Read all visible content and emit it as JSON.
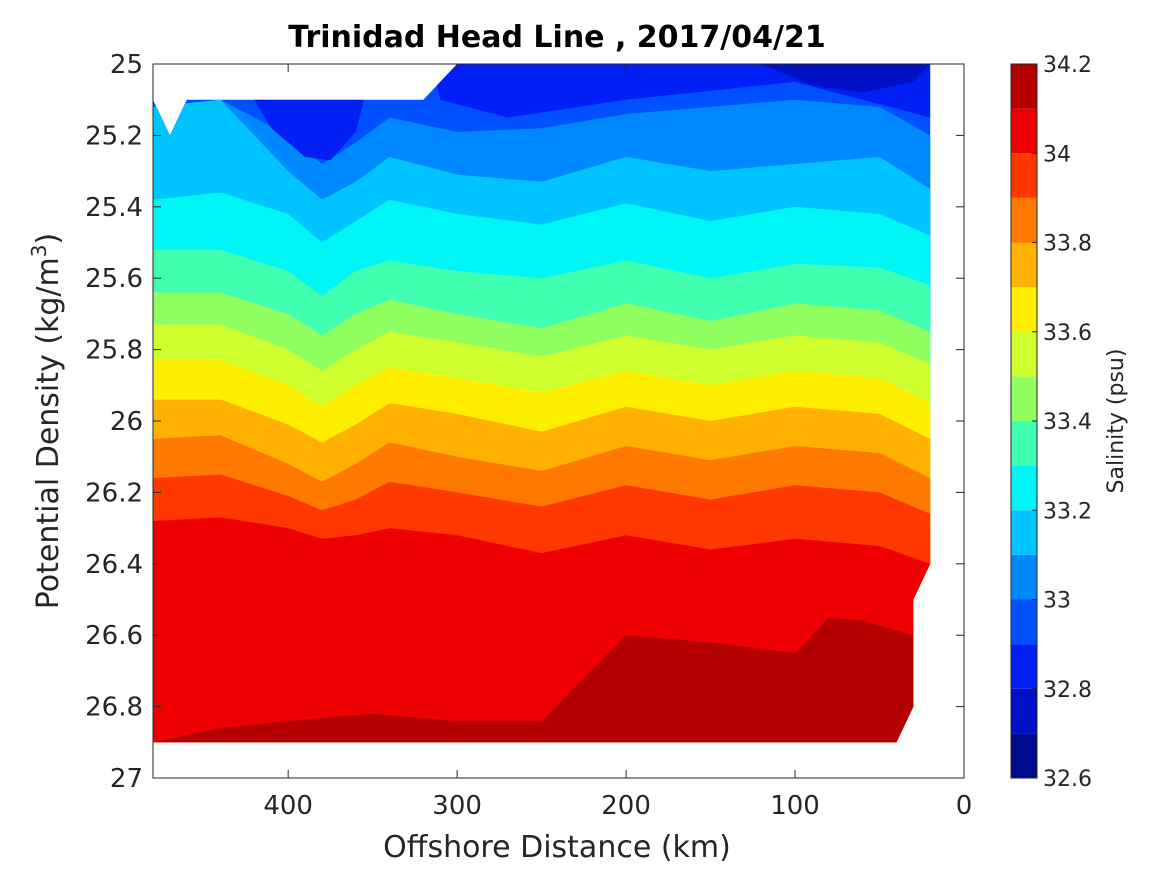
{
  "chart_data": {
    "type": "contour",
    "title": "Trinidad Head Line , 2017/04/21",
    "xlabel": "Offshore Distance (km)",
    "ylabel_main": "Potential Density (kg/m",
    "ylabel_sup": "3",
    "ylabel_end": ")",
    "colorbar_label": "Salinity (psu)",
    "x_axis": {
      "reversed": true,
      "lim": [
        0,
        480
      ],
      "ticks": [
        400,
        300,
        200,
        100,
        0
      ],
      "tick_labels": [
        "400",
        "300",
        "200",
        "100",
        "0"
      ]
    },
    "y_axis": {
      "reversed": true,
      "lim": [
        25,
        27
      ],
      "ticks": [
        25,
        25.2,
        25.4,
        25.6,
        25.8,
        26,
        26.2,
        26.4,
        26.6,
        26.8,
        27
      ],
      "tick_labels": [
        "25",
        "25.2",
        "25.4",
        "25.6",
        "25.8",
        "26",
        "26.2",
        "26.4",
        "26.6",
        "26.8",
        "27"
      ]
    },
    "colorbar": {
      "lim": [
        32.6,
        34.2
      ],
      "ticks": [
        32.6,
        32.8,
        33,
        33.2,
        33.4,
        33.6,
        33.8,
        34,
        34.2
      ],
      "tick_labels": [
        "32.6",
        "32.8",
        "33",
        "33.2",
        "33.4",
        "33.6",
        "33.8",
        "34",
        "34.2"
      ],
      "levels": [
        32.6,
        32.7,
        32.8,
        32.9,
        33.0,
        33.1,
        33.2,
        33.3,
        33.4,
        33.5,
        33.6,
        33.7,
        33.8,
        33.9,
        34.0,
        34.1,
        34.2
      ],
      "colors": [
        "#000a8f",
        "#0010c4",
        "#001ff5",
        "#0050ff",
        "#0088ff",
        "#00c4ff",
        "#00f5f5",
        "#40ffb0",
        "#90ff60",
        "#d0ff30",
        "#ffee00",
        "#ffb000",
        "#ff7800",
        "#ff3800",
        "#ee0000",
        "#b50000"
      ]
    },
    "data_extent": {
      "x": [
        480,
        470,
        460,
        440,
        420,
        400,
        380,
        360,
        340,
        320,
        300,
        280,
        260,
        240,
        220,
        200,
        180,
        160,
        140,
        120,
        100,
        80,
        60,
        40,
        20
      ],
      "top_y": [
        25.1,
        25.2,
        25.1,
        25.1,
        25.1,
        25.1,
        25.1,
        25.1,
        25.1,
        25.1,
        25.0,
        25.0,
        25.0,
        25.0,
        25.0,
        25.0,
        25.0,
        25.0,
        25.0,
        25.0,
        25.0,
        25.0,
        25.0,
        25.0,
        25.0
      ],
      "bottom_y": 26.9,
      "notes": "white wedges at top near 470 km and 290 km; missing bottom-right region below ~26.4 east of 30 km"
    },
    "contours": [
      {
        "level": 32.8,
        "note": "patches: near-surface 25.1–25.25 around 400–360 km and at top-right 100–50 km"
      },
      {
        "level": 32.9,
        "y_at_x": {
          "x": [
            480,
            440,
            400,
            380,
            360,
            340,
            300,
            250,
            200,
            150,
            100,
            50,
            20
          ],
          "y": [
            25.12,
            25.1,
            25.2,
            25.28,
            25.22,
            25.15,
            25.19,
            25.18,
            25.14,
            25.12,
            25.1,
            25.12,
            25.2
          ]
        }
      },
      {
        "level": 33.0,
        "y_at_x": {
          "x": [
            480,
            440,
            400,
            380,
            360,
            340,
            300,
            250,
            200,
            150,
            100,
            50,
            20
          ],
          "y": [
            25.12,
            25.1,
            25.3,
            25.38,
            25.33,
            25.26,
            25.31,
            25.33,
            25.26,
            25.3,
            25.28,
            25.26,
            25.35
          ]
        }
      },
      {
        "level": 33.1,
        "y_at_x": {
          "x": [
            480,
            440,
            400,
            380,
            360,
            340,
            300,
            250,
            200,
            150,
            100,
            50,
            20
          ],
          "y": [
            25.38,
            25.36,
            25.42,
            25.5,
            25.44,
            25.38,
            25.42,
            25.45,
            25.39,
            25.44,
            25.4,
            25.42,
            25.48
          ]
        }
      },
      {
        "level": 33.2,
        "y_at_x": {
          "x": [
            480,
            440,
            400,
            380,
            360,
            340,
            300,
            250,
            200,
            150,
            100,
            50,
            20
          ],
          "y": [
            25.52,
            25.52,
            25.58,
            25.65,
            25.58,
            25.55,
            25.58,
            25.6,
            25.55,
            25.6,
            25.56,
            25.57,
            25.62
          ]
        }
      },
      {
        "level": 33.3,
        "y_at_x": {
          "x": [
            480,
            440,
            400,
            380,
            360,
            340,
            300,
            250,
            200,
            150,
            100,
            50,
            20
          ],
          "y": [
            25.64,
            25.64,
            25.7,
            25.76,
            25.7,
            25.66,
            25.7,
            25.74,
            25.67,
            25.72,
            25.67,
            25.69,
            25.75
          ]
        }
      },
      {
        "level": 33.4,
        "y_at_x": {
          "x": [
            480,
            440,
            400,
            380,
            360,
            340,
            300,
            250,
            200,
            150,
            100,
            50,
            20
          ],
          "y": [
            25.73,
            25.73,
            25.8,
            25.86,
            25.8,
            25.75,
            25.78,
            25.82,
            25.76,
            25.8,
            25.76,
            25.78,
            25.84
          ]
        }
      },
      {
        "level": 33.5,
        "y_at_x": {
          "x": [
            480,
            440,
            400,
            380,
            360,
            340,
            300,
            250,
            200,
            150,
            100,
            50,
            20
          ],
          "y": [
            25.83,
            25.83,
            25.9,
            25.96,
            25.9,
            25.85,
            25.88,
            25.92,
            25.86,
            25.9,
            25.86,
            25.88,
            25.95
          ]
        }
      },
      {
        "level": 33.6,
        "y_at_x": {
          "x": [
            480,
            440,
            400,
            380,
            360,
            340,
            300,
            250,
            200,
            150,
            100,
            50,
            20
          ],
          "y": [
            25.94,
            25.94,
            26.01,
            26.06,
            26.01,
            25.95,
            25.98,
            26.03,
            25.96,
            26.0,
            25.96,
            25.98,
            26.05
          ]
        }
      },
      {
        "level": 33.7,
        "y_at_x": {
          "x": [
            480,
            440,
            400,
            380,
            360,
            340,
            300,
            250,
            200,
            150,
            100,
            50,
            20
          ],
          "y": [
            26.05,
            26.04,
            26.12,
            26.17,
            26.12,
            26.06,
            26.1,
            26.14,
            26.07,
            26.11,
            26.07,
            26.09,
            26.16
          ]
        }
      },
      {
        "level": 33.8,
        "y_at_x": {
          "x": [
            480,
            440,
            400,
            380,
            360,
            340,
            300,
            250,
            200,
            150,
            100,
            50,
            20
          ],
          "y": [
            26.16,
            26.15,
            26.21,
            26.25,
            26.22,
            26.17,
            26.2,
            26.24,
            26.18,
            26.22,
            26.18,
            26.2,
            26.26
          ]
        }
      },
      {
        "level": 33.9,
        "y_at_x": {
          "x": [
            480,
            440,
            400,
            380,
            360,
            340,
            300,
            250,
            200,
            150,
            100,
            50,
            20
          ],
          "y": [
            26.28,
            26.27,
            26.3,
            26.33,
            26.32,
            26.3,
            26.32,
            26.37,
            26.32,
            26.36,
            26.33,
            26.35,
            26.4
          ]
        }
      },
      {
        "level": 34.0,
        "y_at_x": {
          "x": [
            480,
            440,
            400,
            350,
            300,
            250,
            200,
            150,
            100,
            80,
            60,
            30
          ],
          "y": [
            26.9,
            26.86,
            26.84,
            26.82,
            26.84,
            26.84,
            26.6,
            26.62,
            26.65,
            26.55,
            26.56,
            26.6
          ]
        }
      },
      {
        "level": 34.1,
        "note": "patches at bottom near 190–150 km and 90–40 km, y ≈ 26.82–26.9"
      }
    ]
  }
}
